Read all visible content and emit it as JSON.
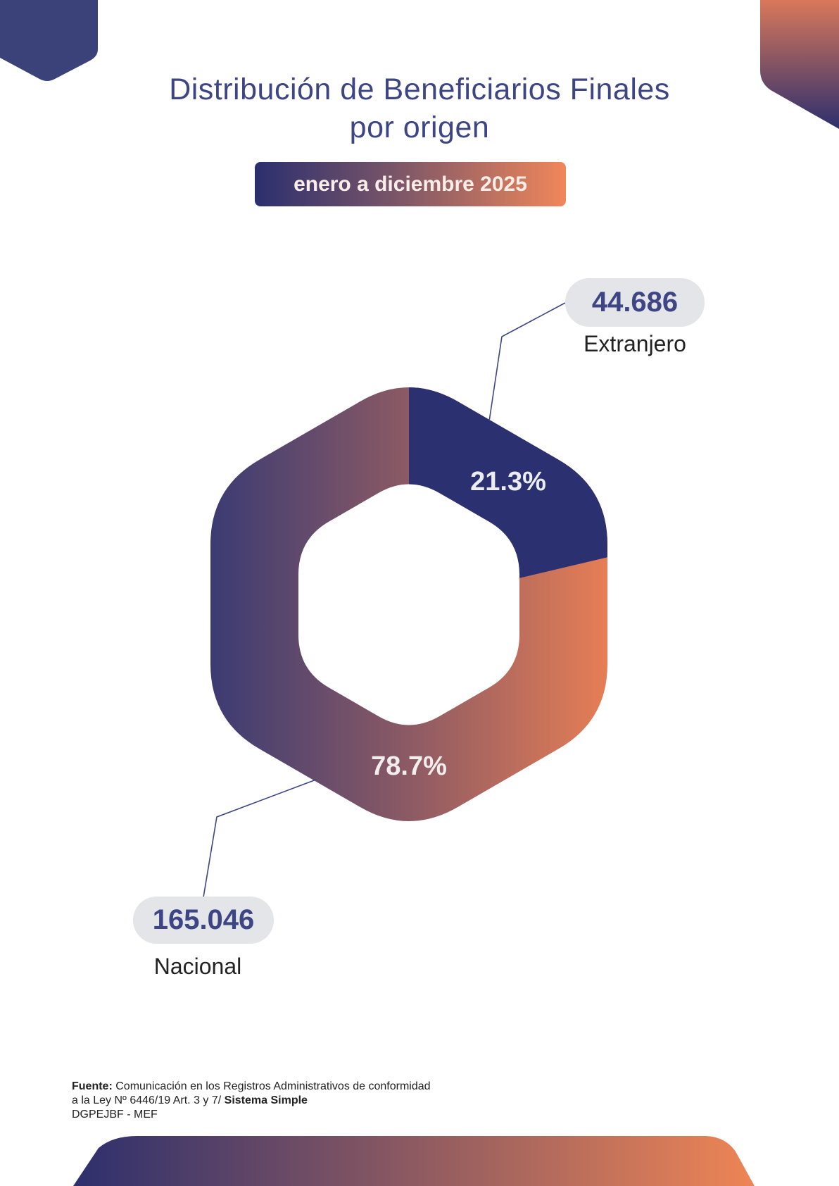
{
  "title_line1": "Distribución de Beneficiarios Finales",
  "title_line2": "por origen",
  "period": "enero a diciembre 2025",
  "colors": {
    "navy": "#2a3070",
    "title": "#3d4585",
    "gradient_start": "#3b3b73",
    "gradient_end": "#e67e55",
    "pill": "#e4e5e9"
  },
  "chart_data": {
    "type": "pie",
    "variant": "hexagonal donut",
    "title": "Distribución de Beneficiarios Finales por origen",
    "categories": [
      "Extranjero",
      "Nacional"
    ],
    "values": [
      44686,
      165046
    ],
    "value_labels": [
      "44.686",
      "165.046"
    ],
    "percent": [
      21.3,
      78.7
    ],
    "percent_labels": [
      "21.3%",
      "78.7%"
    ]
  },
  "footer": {
    "source_label": "Fuente:",
    "source_text": "Comunicación en los Registros Administrativos de conformidad",
    "line2_text": "a la Ley Nº 6446/19 Art. 3 y 7/",
    "line2_bold": "Sistema Simple",
    "line3": "DGPEJBF - MEF"
  }
}
